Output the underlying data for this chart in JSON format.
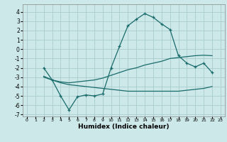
{
  "xlabel": "Humidex (Indice chaleur)",
  "background_color": "#cce8e8",
  "grid_color": "#aacccc",
  "line_color": "#1a6b6b",
  "xlim": [
    -0.5,
    23.5
  ],
  "ylim": [
    -7.2,
    4.8
  ],
  "yticks": [
    -7,
    -6,
    -5,
    -4,
    -3,
    -2,
    -1,
    0,
    1,
    2,
    3,
    4
  ],
  "xticks": [
    0,
    1,
    2,
    3,
    4,
    5,
    6,
    7,
    8,
    9,
    10,
    11,
    12,
    13,
    14,
    15,
    16,
    17,
    18,
    19,
    20,
    21,
    22,
    23
  ],
  "line1_x": [
    2,
    3,
    4,
    5,
    6,
    7,
    8,
    9,
    10,
    11,
    12,
    13,
    14,
    15,
    16,
    17,
    18,
    19,
    20,
    21,
    22
  ],
  "line1_y": [
    -2.0,
    -3.3,
    -5.0,
    -6.5,
    -5.1,
    -4.9,
    -5.0,
    -4.8,
    -2.0,
    0.3,
    2.5,
    3.2,
    3.8,
    3.4,
    2.7,
    2.1,
    -0.7,
    -1.5,
    -1.9,
    -1.5,
    -2.5
  ],
  "line2_x": [
    2,
    3,
    4,
    5,
    6,
    7,
    8,
    9,
    10,
    11,
    12,
    13,
    14,
    15,
    16,
    17,
    18,
    19,
    20,
    21,
    22
  ],
  "line2_y": [
    -2.9,
    -3.3,
    -3.5,
    -3.6,
    -3.5,
    -3.4,
    -3.3,
    -3.1,
    -2.8,
    -2.5,
    -2.2,
    -2.0,
    -1.7,
    -1.5,
    -1.3,
    -1.0,
    -0.9,
    -0.8,
    -0.7,
    -0.65,
    -0.7
  ],
  "line3_x": [
    2,
    3,
    4,
    5,
    6,
    7,
    8,
    9,
    10,
    11,
    12,
    13,
    14,
    15,
    16,
    17,
    18,
    19,
    20,
    21,
    22
  ],
  "line3_y": [
    -3.0,
    -3.3,
    -3.6,
    -3.8,
    -3.9,
    -4.0,
    -4.1,
    -4.2,
    -4.3,
    -4.4,
    -4.5,
    -4.5,
    -4.5,
    -4.5,
    -4.5,
    -4.5,
    -4.5,
    -4.4,
    -4.3,
    -4.2,
    -4.0
  ]
}
